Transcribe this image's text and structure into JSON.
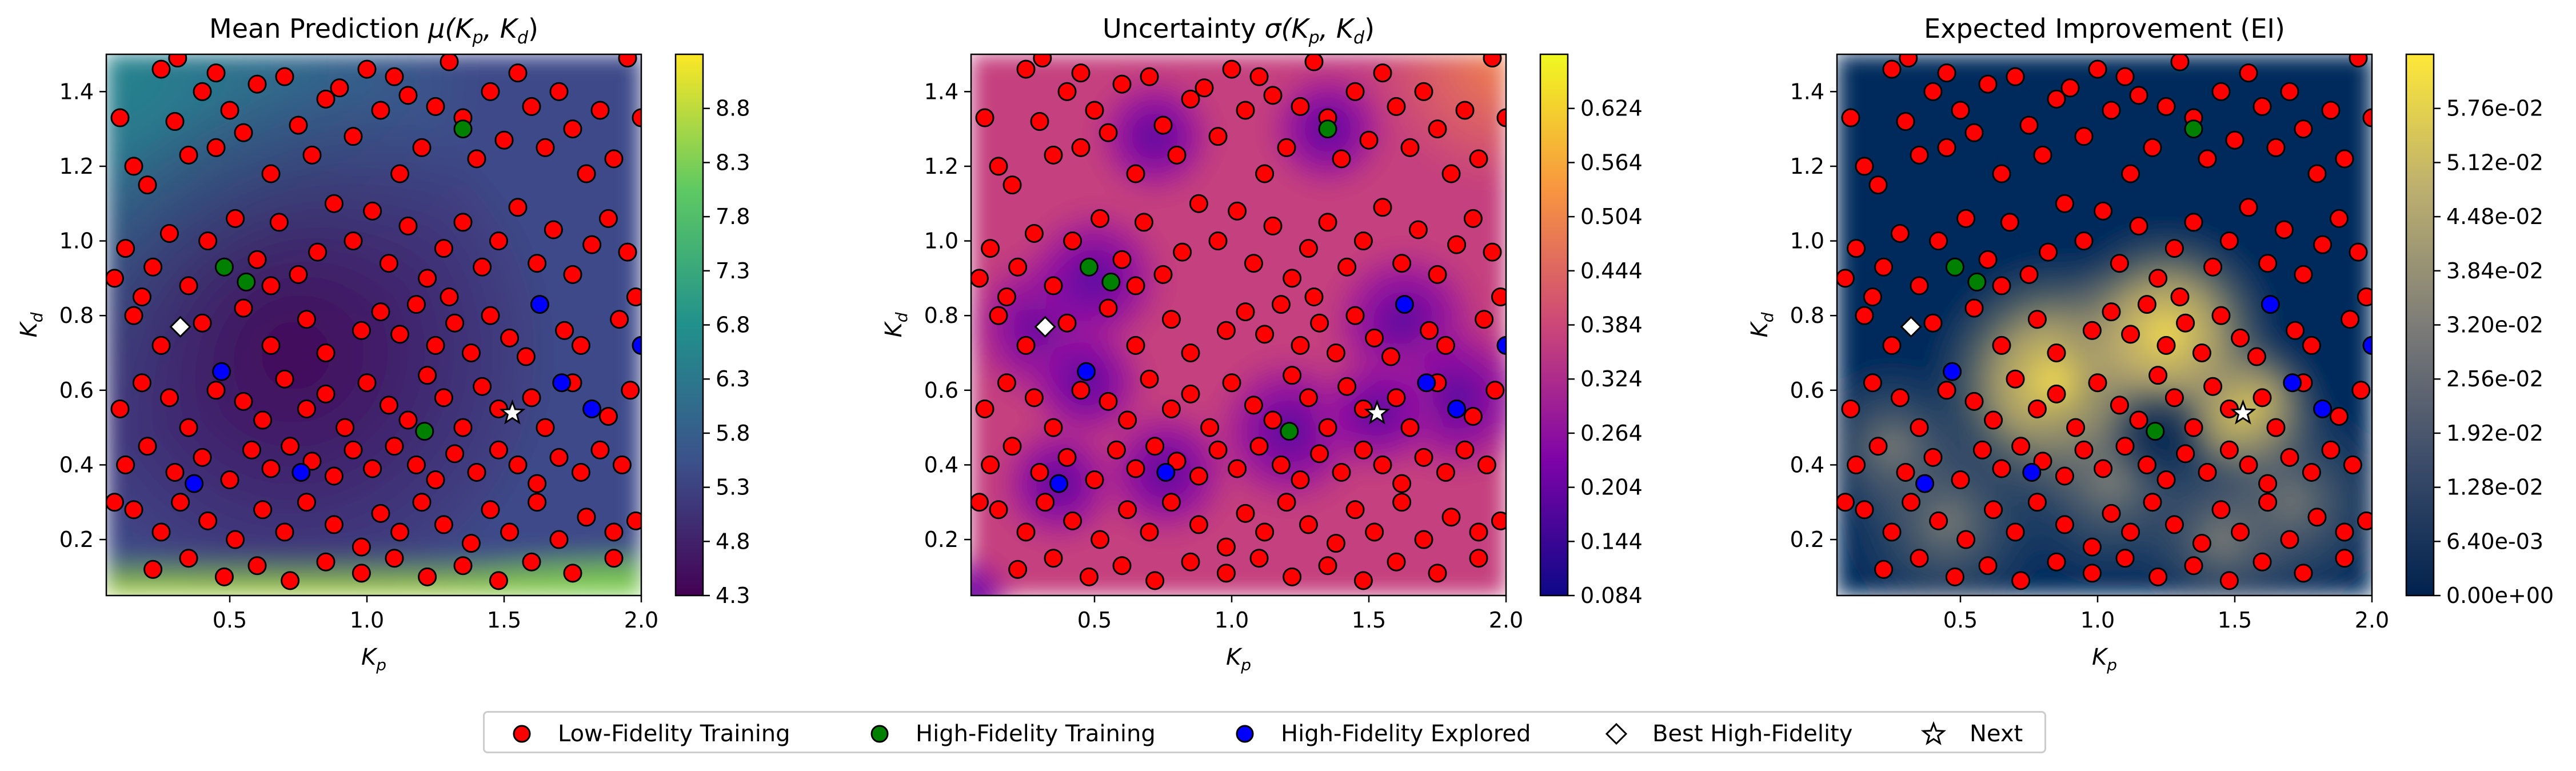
{
  "chart_data": [
    {
      "type": "heatmap",
      "title_main": "Mean Prediction ",
      "title_math": "μ(K",
      "title_sub1": "p",
      "title_sep": ", K",
      "title_sub2": "d",
      "title_end": ")",
      "xlabel_main": "K",
      "xlabel_sub": "p",
      "ylabel_main": "K",
      "ylabel_sub": "d",
      "xlim": [
        0.05,
        2.0
      ],
      "ylim": [
        0.05,
        1.5
      ],
      "xticks": [
        "0.2",
        "0.4",
        "0.6",
        "0.8",
        "1.0",
        "1.2",
        "1.4",
        "1.6",
        "1.8",
        "2.0"
      ],
      "xtick_values": [
        0.5,
        1.0,
        1.5,
        2.0
      ],
      "xtick_labels": [
        "0.5",
        "1.0",
        "1.5",
        "2.0"
      ],
      "ytick_values": [
        0.2,
        0.4,
        0.6,
        0.8,
        1.0,
        1.2,
        1.4
      ],
      "ytick_labels": [
        "0.2",
        "0.4",
        "0.6",
        "0.8",
        "1.0",
        "1.2",
        "1.4"
      ],
      "colormap": "viridis",
      "colorbar_range": [
        4.3,
        9.3
      ],
      "colorbar_ticks": [
        "4.3",
        "4.8",
        "5.3",
        "5.8",
        "6.3",
        "6.8",
        "7.3",
        "7.8",
        "8.3",
        "8.8"
      ]
    },
    {
      "type": "heatmap",
      "title_main": "Uncertainty ",
      "title_math": "σ(K",
      "title_sub1": "p",
      "title_sep": ", K",
      "title_sub2": "d",
      "title_end": ")",
      "xlabel_main": "K",
      "xlabel_sub": "p",
      "ylabel_main": "K",
      "ylabel_sub": "d",
      "xlim": [
        0.05,
        2.0
      ],
      "ylim": [
        0.05,
        1.5
      ],
      "xtick_values": [
        0.5,
        1.0,
        1.5,
        2.0
      ],
      "xtick_labels": [
        "0.5",
        "1.0",
        "1.5",
        "2.0"
      ],
      "ytick_values": [
        0.2,
        0.4,
        0.6,
        0.8,
        1.0,
        1.2,
        1.4
      ],
      "ytick_labels": [
        "0.2",
        "0.4",
        "0.6",
        "0.8",
        "1.0",
        "1.2",
        "1.4"
      ],
      "colormap": "plasma",
      "colorbar_range": [
        0.084,
        0.654
      ],
      "colorbar_ticks": [
        "0.084",
        "0.144",
        "0.204",
        "0.264",
        "0.324",
        "0.384",
        "0.444",
        "0.504",
        "0.564",
        "0.624"
      ]
    },
    {
      "type": "heatmap",
      "title_main": "Expected Improvement (EI)",
      "xlabel_main": "K",
      "xlabel_sub": "p",
      "ylabel_main": "K",
      "ylabel_sub": "d",
      "xlim": [
        0.05,
        2.0
      ],
      "ylim": [
        0.05,
        1.5
      ],
      "xtick_values": [
        0.5,
        1.0,
        1.5,
        2.0
      ],
      "xtick_labels": [
        "0.5",
        "1.0",
        "1.5",
        "2.0"
      ],
      "ytick_values": [
        0.2,
        0.4,
        0.6,
        0.8,
        1.0,
        1.2,
        1.4
      ],
      "ytick_labels": [
        "0.2",
        "0.4",
        "0.6",
        "0.8",
        "1.0",
        "1.2",
        "1.4"
      ],
      "colormap": "cividis",
      "colorbar_range": [
        0.0,
        0.064
      ],
      "colorbar_ticks": [
        "0.00e+00",
        "6.40e-03",
        "1.28e-02",
        "1.92e-02",
        "2.56e-02",
        "3.20e-02",
        "3.84e-02",
        "4.48e-02",
        "5.12e-02",
        "5.76e-02"
      ]
    }
  ],
  "points": {
    "low_fidelity": [
      [
        0.1,
        1.33
      ],
      [
        0.15,
        1.2
      ],
      [
        0.2,
        1.15
      ],
      [
        0.25,
        1.46
      ],
      [
        0.3,
        1.32
      ],
      [
        0.35,
        1.23
      ],
      [
        0.4,
        1.4
      ],
      [
        0.31,
        1.49
      ],
      [
        0.45,
        1.25
      ],
      [
        0.5,
        1.35
      ],
      [
        0.55,
        1.29
      ],
      [
        0.6,
        1.42
      ],
      [
        0.65,
        1.18
      ],
      [
        0.7,
        1.44
      ],
      [
        0.75,
        1.31
      ],
      [
        0.8,
        1.23
      ],
      [
        0.85,
        1.38
      ],
      [
        0.9,
        1.41
      ],
      [
        0.95,
        1.28
      ],
      [
        1.0,
        1.46
      ],
      [
        1.05,
        1.35
      ],
      [
        1.1,
        1.44
      ],
      [
        1.15,
        1.39
      ],
      [
        1.2,
        1.25
      ],
      [
        1.25,
        1.36
      ],
      [
        1.3,
        1.48
      ],
      [
        1.35,
        1.33
      ],
      [
        1.4,
        1.22
      ],
      [
        1.45,
        1.4
      ],
      [
        1.5,
        1.27
      ],
      [
        1.55,
        1.45
      ],
      [
        1.6,
        1.36
      ],
      [
        1.65,
        1.25
      ],
      [
        1.7,
        1.4
      ],
      [
        1.75,
        1.3
      ],
      [
        1.8,
        1.18
      ],
      [
        1.85,
        1.35
      ],
      [
        1.9,
        1.22
      ],
      [
        1.95,
        1.49
      ],
      [
        2.0,
        1.33
      ],
      [
        0.12,
        0.98
      ],
      [
        0.18,
        0.85
      ],
      [
        0.22,
        0.93
      ],
      [
        0.28,
        1.02
      ],
      [
        0.35,
        0.88
      ],
      [
        0.42,
        1.0
      ],
      [
        0.52,
        1.06
      ],
      [
        0.6,
        0.95
      ],
      [
        0.68,
        1.05
      ],
      [
        0.75,
        0.91
      ],
      [
        0.82,
        0.97
      ],
      [
        0.88,
        1.1
      ],
      [
        0.95,
        1.0
      ],
      [
        1.02,
        1.08
      ],
      [
        1.08,
        0.94
      ],
      [
        1.15,
        1.04
      ],
      [
        1.22,
        0.9
      ],
      [
        1.28,
        0.98
      ],
      [
        1.35,
        1.05
      ],
      [
        1.42,
        0.93
      ],
      [
        1.48,
        1.0
      ],
      [
        1.55,
        1.09
      ],
      [
        1.62,
        0.94
      ],
      [
        1.68,
        1.03
      ],
      [
        1.75,
        0.91
      ],
      [
        1.82,
        0.99
      ],
      [
        1.88,
        1.06
      ],
      [
        1.95,
        0.97
      ],
      [
        0.15,
        0.8
      ],
      [
        0.25,
        0.72
      ],
      [
        0.4,
        0.78
      ],
      [
        0.55,
        0.82
      ],
      [
        0.65,
        0.72
      ],
      [
        0.78,
        0.79
      ],
      [
        0.85,
        0.7
      ],
      [
        0.98,
        0.76
      ],
      [
        1.05,
        0.81
      ],
      [
        1.12,
        0.75
      ],
      [
        1.18,
        0.83
      ],
      [
        1.25,
        0.72
      ],
      [
        1.32,
        0.78
      ],
      [
        1.38,
        0.7
      ],
      [
        1.45,
        0.8
      ],
      [
        1.52,
        0.74
      ],
      [
        1.58,
        0.69
      ],
      [
        1.72,
        0.76
      ],
      [
        1.78,
        0.72
      ],
      [
        1.92,
        0.79
      ],
      [
        0.1,
        0.55
      ],
      [
        0.18,
        0.62
      ],
      [
        0.28,
        0.58
      ],
      [
        0.35,
        0.5
      ],
      [
        0.45,
        0.6
      ],
      [
        0.55,
        0.57
      ],
      [
        0.62,
        0.52
      ],
      [
        0.7,
        0.63
      ],
      [
        0.78,
        0.55
      ],
      [
        0.85,
        0.59
      ],
      [
        0.92,
        0.5
      ],
      [
        1.0,
        0.62
      ],
      [
        1.08,
        0.56
      ],
      [
        1.15,
        0.52
      ],
      [
        1.22,
        0.64
      ],
      [
        1.28,
        0.58
      ],
      [
        1.35,
        0.5
      ],
      [
        1.42,
        0.61
      ],
      [
        1.48,
        0.55
      ],
      [
        1.6,
        0.58
      ],
      [
        1.65,
        0.5
      ],
      [
        1.75,
        0.62
      ],
      [
        1.88,
        0.53
      ],
      [
        1.96,
        0.6
      ],
      [
        0.12,
        0.4
      ],
      [
        0.2,
        0.45
      ],
      [
        0.3,
        0.38
      ],
      [
        0.4,
        0.42
      ],
      [
        0.5,
        0.36
      ],
      [
        0.58,
        0.44
      ],
      [
        0.65,
        0.39
      ],
      [
        0.72,
        0.45
      ],
      [
        0.8,
        0.41
      ],
      [
        0.88,
        0.37
      ],
      [
        0.95,
        0.44
      ],
      [
        1.02,
        0.39
      ],
      [
        1.1,
        0.45
      ],
      [
        1.18,
        0.4
      ],
      [
        1.25,
        0.36
      ],
      [
        1.32,
        0.43
      ],
      [
        1.4,
        0.38
      ],
      [
        1.48,
        0.44
      ],
      [
        1.55,
        0.4
      ],
      [
        1.62,
        0.35
      ],
      [
        1.7,
        0.42
      ],
      [
        1.78,
        0.38
      ],
      [
        1.85,
        0.44
      ],
      [
        1.93,
        0.4
      ],
      [
        0.15,
        0.28
      ],
      [
        0.25,
        0.22
      ],
      [
        0.32,
        0.3
      ],
      [
        0.42,
        0.25
      ],
      [
        0.52,
        0.2
      ],
      [
        0.62,
        0.28
      ],
      [
        0.7,
        0.22
      ],
      [
        0.78,
        0.3
      ],
      [
        0.88,
        0.24
      ],
      [
        0.98,
        0.18
      ],
      [
        1.05,
        0.27
      ],
      [
        1.12,
        0.22
      ],
      [
        1.2,
        0.3
      ],
      [
        1.28,
        0.24
      ],
      [
        1.38,
        0.19
      ],
      [
        1.45,
        0.28
      ],
      [
        1.52,
        0.22
      ],
      [
        1.62,
        0.3
      ],
      [
        1.7,
        0.2
      ],
      [
        1.8,
        0.26
      ],
      [
        1.9,
        0.22
      ],
      [
        0.22,
        0.12
      ],
      [
        0.35,
        0.15
      ],
      [
        0.48,
        0.1
      ],
      [
        0.6,
        0.13
      ],
      [
        0.72,
        0.09
      ],
      [
        0.85,
        0.14
      ],
      [
        0.98,
        0.11
      ],
      [
        1.1,
        0.15
      ],
      [
        1.22,
        0.1
      ],
      [
        1.35,
        0.13
      ],
      [
        1.48,
        0.09
      ],
      [
        1.6,
        0.14
      ],
      [
        1.75,
        0.11
      ],
      [
        1.9,
        0.15
      ],
      [
        0.08,
        0.9
      ],
      [
        0.08,
        0.3
      ],
      [
        1.98,
        0.85
      ],
      [
        1.98,
        0.25
      ],
      [
        0.65,
        0.88
      ],
      [
        1.12,
        1.18
      ],
      [
        1.3,
        0.85
      ],
      [
        0.45,
        1.45
      ]
    ],
    "high_fidelity": [
      [
        0.48,
        0.93
      ],
      [
        0.56,
        0.89
      ],
      [
        1.35,
        1.3
      ],
      [
        1.21,
        0.49
      ]
    ],
    "explored": [
      [
        0.47,
        0.65
      ],
      [
        0.37,
        0.35
      ],
      [
        0.76,
        0.38
      ],
      [
        1.63,
        0.83
      ],
      [
        1.71,
        0.62
      ],
      [
        1.82,
        0.55
      ],
      [
        2.0,
        0.72
      ]
    ],
    "best": [
      0.32,
      0.77
    ],
    "next": [
      1.53,
      0.54
    ]
  },
  "legend": {
    "low_fidelity": "Low-Fidelity Training",
    "high_fidelity": "High-Fidelity Training",
    "explored": "High-Fidelity Explored",
    "best": "Best High-Fidelity",
    "next": "Next"
  },
  "colors": {
    "low_fidelity": "#ff0000",
    "high_fidelity": "#008000",
    "explored": "#0000ff",
    "marker_edge": "#000000"
  }
}
